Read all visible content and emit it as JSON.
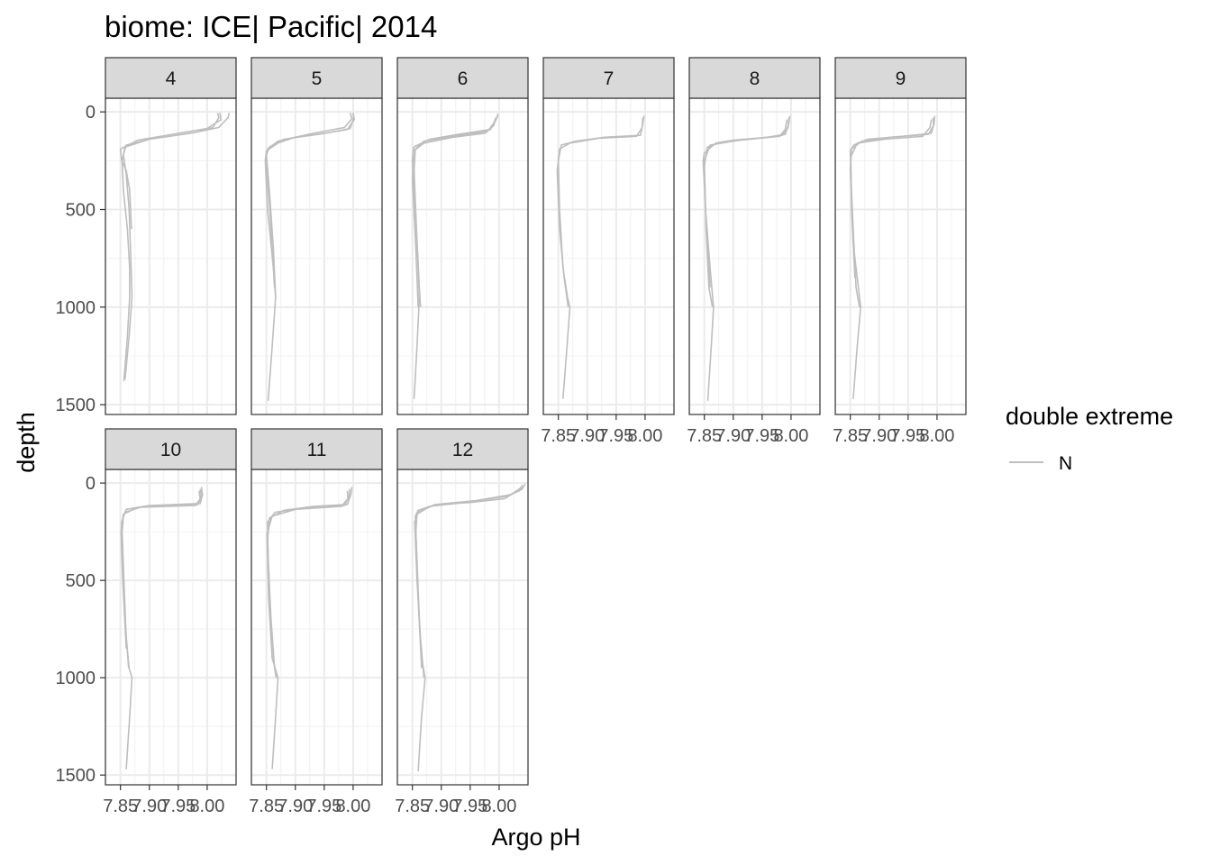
{
  "title": "biome: ICE| Pacific| 2014",
  "chart_data": {
    "type": "line",
    "title": "biome: ICE| Pacific| 2014",
    "xlabel": "Argo pH",
    "ylabel": "depth",
    "facet_variable": "month",
    "xlim": [
      7.824,
      8.05
    ],
    "ylim": [
      1550,
      -70
    ],
    "y_reversed": true,
    "x_ticks": [
      7.85,
      7.9,
      7.95,
      8.0
    ],
    "x_tick_labels": [
      "7.85",
      "7.90",
      "7.95",
      "8.00"
    ],
    "y_ticks": [
      0,
      500,
      1000,
      1500
    ],
    "y_tick_labels": [
      "0",
      "500",
      "1000",
      "1500"
    ],
    "grid": true,
    "legend": {
      "title": "double extreme",
      "entries": [
        {
          "label": "N",
          "color": "#bebebe"
        }
      ],
      "position": "right"
    },
    "line_color": "#bebebe",
    "facets": [
      {
        "label": "4",
        "series": [
          {
            "x": [
              8.018,
              8.02,
              8.01,
              7.98,
              7.9,
              7.86,
              7.855,
              7.86,
              7.865,
              7.868,
              7.87,
              7.865,
              7.858
            ],
            "y": [
              5,
              30,
              80,
              105,
              140,
              170,
              220,
              320,
              500,
              750,
              950,
              1150,
              1370
            ]
          },
          {
            "x": [
              8.038,
              8.036,
              8.02,
              7.98,
              7.9,
              7.858,
              7.853,
              7.855,
              7.862,
              7.866,
              7.866,
              7.862,
              7.856
            ],
            "y": [
              5,
              30,
              80,
              105,
              140,
              180,
              250,
              400,
              600,
              800,
              950,
              1150,
              1380
            ]
          },
          {
            "x": [
              8.022,
              8.024,
              8.0,
              7.95,
              7.88,
              7.85,
              7.852,
              7.86,
              7.866,
              7.869
            ],
            "y": [
              5,
              40,
              85,
              110,
              145,
              190,
              250,
              300,
              400,
              600
            ]
          }
        ]
      },
      {
        "label": "5",
        "series": [
          {
            "x": [
              8.0,
              8.001,
              7.995,
              7.96,
              7.9,
              7.87,
              7.85,
              7.848,
              7.852,
              7.862,
              7.866,
              7.86,
              7.853
            ],
            "y": [
              5,
              30,
              85,
              105,
              130,
              160,
              200,
              250,
              500,
              800,
              950,
              1200,
              1480
            ]
          },
          {
            "x": [
              8.0,
              8.002,
              7.99,
              7.94,
              7.88,
              7.855,
              7.85,
              7.855,
              7.862,
              7.866
            ],
            "y": [
              5,
              40,
              90,
              115,
              140,
              180,
              220,
              400,
              700,
              950
            ]
          },
          {
            "x": [
              7.995,
              7.998,
              7.985,
              7.93,
              7.87,
              7.852,
              7.849,
              7.856,
              7.864
            ],
            "y": [
              5,
              35,
              80,
              110,
              150,
              190,
              240,
              500,
              900
            ]
          }
        ]
      },
      {
        "label": "6",
        "series": [
          {
            "x": [
              7.998,
              7.995,
              7.985,
              7.93,
              7.88,
              7.852,
              7.85,
              7.855,
              7.86,
              7.862,
              7.858,
              7.853
            ],
            "y": [
              10,
              40,
              90,
              115,
              140,
              180,
              250,
              500,
              800,
              950,
              1200,
              1470
            ]
          },
          {
            "x": [
              7.998,
              7.99,
              7.98,
              7.92,
              7.87,
              7.855,
              7.853,
              7.857,
              7.862,
              7.864
            ],
            "y": [
              20,
              60,
              100,
              125,
              150,
              190,
              300,
              600,
              900,
              1000
            ]
          },
          {
            "x": [
              7.994,
              7.991,
              7.975,
              7.92,
              7.87,
              7.852,
              7.85,
              7.856,
              7.86
            ],
            "y": [
              30,
              70,
              110,
              130,
              160,
              200,
              350,
              700,
              1000
            ]
          }
        ]
      },
      {
        "label": "7",
        "series": [
          {
            "x": [
              7.998,
              7.996,
              7.992,
              7.93,
              7.88,
              7.855,
              7.85,
              7.852,
              7.858,
              7.866,
              7.87,
              7.865,
              7.858
            ],
            "y": [
              20,
              60,
              120,
              130,
              150,
              170,
              250,
              500,
              800,
              950,
              1000,
              1200,
              1470
            ]
          },
          {
            "x": [
              7.996,
              7.995,
              7.985,
              7.92,
              7.87,
              7.852,
              7.848,
              7.852,
              7.86,
              7.867
            ],
            "y": [
              30,
              80,
              125,
              135,
              160,
              190,
              300,
              600,
              850,
              1000
            ]
          }
        ]
      },
      {
        "label": "8",
        "series": [
          {
            "x": [
              7.998,
              7.996,
              7.99,
              7.96,
              7.9,
              7.87,
              7.85,
              7.848,
              7.852,
              7.86,
              7.866,
              7.862,
              7.856
            ],
            "y": [
              20,
              60,
              115,
              130,
              145,
              160,
              210,
              250,
              500,
              800,
              1000,
              1200,
              1480
            ]
          },
          {
            "x": [
              7.996,
              7.995,
              7.985,
              7.93,
              7.88,
              7.855,
              7.85,
              7.853,
              7.858,
              7.864
            ],
            "y": [
              30,
              80,
              120,
              140,
              155,
              180,
              280,
              600,
              900,
              1000
            ]
          },
          {
            "x": [
              7.993,
              7.99,
              7.98,
              7.91,
              7.86,
              7.85,
              7.852,
              7.86
            ],
            "y": [
              40,
              90,
              125,
              145,
              170,
              250,
              500,
              900
            ]
          }
        ]
      },
      {
        "label": "9",
        "series": [
          {
            "x": [
              7.996,
              7.995,
              7.99,
              7.94,
              7.88,
              7.856,
              7.85,
              7.852,
              7.856,
              7.864,
              7.868,
              7.862,
              7.855
            ],
            "y": [
              20,
              60,
              110,
              125,
              140,
              170,
              200,
              400,
              700,
              900,
              1000,
              1200,
              1470
            ]
          },
          {
            "x": [
              7.993,
              7.994,
              7.985,
              7.92,
              7.87,
              7.852,
              7.85,
              7.855,
              7.86,
              7.866
            ],
            "y": [
              30,
              70,
              115,
              130,
              150,
              190,
              300,
              600,
              900,
              1000
            ]
          },
          {
            "x": [
              7.99,
              7.988,
              7.975,
              7.91,
              7.862,
              7.851,
              7.852,
              7.858
            ],
            "y": [
              40,
              80,
              125,
              140,
              160,
              230,
              500,
              850
            ]
          }
        ]
      },
      {
        "label": "10",
        "series": [
          {
            "x": [
              7.99,
              7.992,
              7.988,
              7.9,
              7.86,
              7.855,
              7.853,
              7.856,
              7.86,
              7.865,
              7.87,
              7.866,
              7.86
            ],
            "y": [
              20,
              60,
              105,
              115,
              135,
              170,
              250,
              500,
              800,
              950,
              1000,
              1200,
              1470
            ]
          },
          {
            "x": [
              7.988,
              7.99,
              7.984,
              7.89,
              7.858,
              7.852,
              7.853,
              7.858,
              7.864
            ],
            "y": [
              30,
              70,
              110,
              120,
              150,
              200,
              400,
              700,
              950
            ]
          },
          {
            "x": [
              7.986,
              7.988,
              7.98,
              7.88,
              7.855,
              7.851,
              7.854,
              7.86
            ],
            "y": [
              40,
              80,
              115,
              125,
              160,
              250,
              500,
              850
            ]
          }
        ]
      },
      {
        "label": "11",
        "series": [
          {
            "x": [
              7.998,
              7.996,
              7.99,
              7.93,
              7.88,
              7.855,
              7.852,
              7.856,
              7.86,
              7.87,
              7.866,
              7.86
            ],
            "y": [
              20,
              60,
              110,
              120,
              140,
              180,
              300,
              600,
              900,
              1000,
              1200,
              1470
            ]
          },
          {
            "x": [
              7.994,
              7.993,
              7.985,
              7.91,
              7.865,
              7.852,
              7.853,
              7.858,
              7.864,
              7.867
            ],
            "y": [
              30,
              70,
              115,
              130,
              150,
              200,
              400,
              700,
              950,
              1000
            ]
          },
          {
            "x": [
              7.99,
              7.991,
              7.98,
              7.9,
              7.86,
              7.851,
              7.854,
              7.86
            ],
            "y": [
              40,
              80,
              120,
              135,
              170,
              260,
              600,
              900
            ]
          }
        ]
      },
      {
        "label": "12",
        "series": [
          {
            "x": [
              8.04,
              8.03,
              8.01,
              7.95,
              7.89,
              7.86,
              7.855,
              7.858,
              7.862,
              7.866,
              7.872,
              7.866,
              7.86
            ],
            "y": [
              20,
              40,
              80,
              100,
              110,
              140,
              170,
              400,
              700,
              900,
              1000,
              1200,
              1480
            ]
          },
          {
            "x": [
              8.045,
              8.04,
              8.02,
              7.96,
              7.89,
              7.86,
              7.854,
              7.858,
              7.864,
              7.87
            ],
            "y": [
              5,
              30,
              60,
              90,
              110,
              150,
              200,
              500,
              800,
              1000
            ]
          },
          {
            "x": [
              8.04,
              8.035,
              8.01,
              7.94,
              7.88,
              7.858,
              7.856,
              7.86,
              7.866
            ],
            "y": [
              10,
              40,
              70,
              100,
              120,
              160,
              250,
              600,
              950
            ]
          }
        ]
      }
    ]
  }
}
